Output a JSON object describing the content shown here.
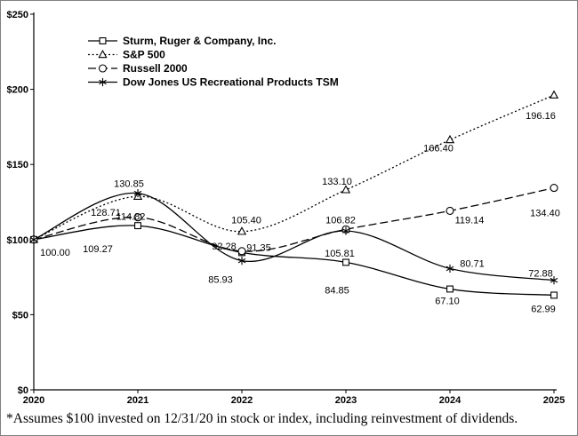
{
  "footnote": "*Assumes $100 invested on 12/31/20 in stock or index, including reinvestment of dividends.",
  "chart_data": {
    "type": "line",
    "title": "",
    "xlabel": "",
    "ylabel": "",
    "x": [
      "2020",
      "2021",
      "2022",
      "2023",
      "2024",
      "2025"
    ],
    "ylim": [
      0,
      250
    ],
    "yticks": [
      0,
      50,
      100,
      150,
      200,
      250
    ],
    "ytick_labels": [
      "$0",
      "$50",
      "$100",
      "$150",
      "$200",
      "$250"
    ],
    "grid": false,
    "legend_position": "top-left-inside",
    "color": "#000000",
    "series": [
      {
        "name": "Sturm, Ruger & Company, Inc.",
        "marker": "square",
        "line_style": "solid",
        "values": [
          100.0,
          109.27,
          91.35,
          84.85,
          67.1,
          62.99
        ],
        "label_offsets": [
          [
            24,
            18
          ],
          [
            -45,
            30
          ],
          [
            19,
            -2
          ],
          [
            -10,
            35
          ],
          [
            -3,
            17
          ],
          [
            -12,
            19
          ]
        ]
      },
      {
        "name": "S&P 500",
        "marker": "triangle",
        "line_style": "dotted",
        "values": [
          100.0,
          128.71,
          105.4,
          133.1,
          166.4,
          196.16
        ],
        "label_offsets": [
          null,
          [
            -36,
            22
          ],
          [
            5,
            -9
          ],
          [
            -10,
            -6
          ],
          [
            -13,
            13
          ],
          [
            -15,
            27
          ]
        ]
      },
      {
        "name": "Russell 2000",
        "marker": "circle",
        "line_style": "dashed",
        "values": [
          100.0,
          114.82,
          92.28,
          106.82,
          119.14,
          134.4
        ],
        "label_offsets": [
          null,
          [
            -8,
            3
          ],
          [
            -20,
            -2
          ],
          [
            -6,
            -7
          ],
          [
            22,
            14
          ],
          [
            -10,
            32
          ]
        ]
      },
      {
        "name": "Dow Jones US Recreational Products TSM",
        "marker": "asterisk",
        "line_style": "solid",
        "values": [
          100.0,
          130.85,
          85.93,
          105.81,
          80.71,
          72.88
        ],
        "label_offsets": [
          null,
          [
            -10,
            -7
          ],
          [
            -24,
            25
          ],
          [
            -7,
            29
          ],
          [
            25,
            -2
          ],
          [
            -15,
            -4
          ]
        ]
      }
    ]
  }
}
